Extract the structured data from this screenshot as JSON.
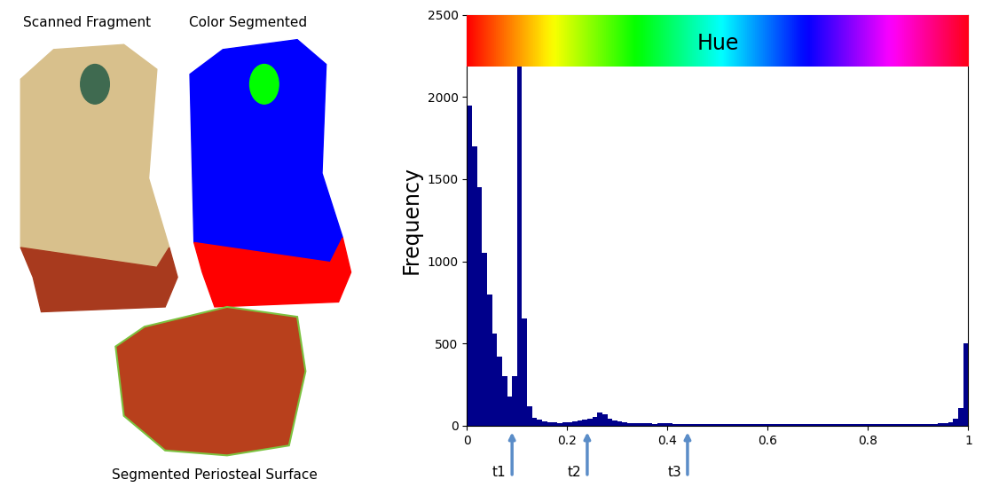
{
  "image_labels": [
    "Scanned Fragment",
    "Color Segmented",
    "Segmented Periosteal Surface"
  ],
  "chart_data": {
    "type": "histogram",
    "ylabel": "Frequency",
    "hue_scale_label": "Hue",
    "bins": [
      0.0,
      0.01,
      0.02,
      0.03,
      0.04,
      0.05,
      0.06,
      0.07,
      0.08,
      0.09,
      0.1,
      0.11,
      0.12,
      0.13,
      0.14,
      0.15,
      0.16,
      0.17,
      0.18,
      0.19,
      0.2,
      0.21,
      0.22,
      0.23,
      0.24,
      0.25,
      0.26,
      0.27,
      0.28,
      0.29,
      0.3,
      0.31,
      0.32,
      0.33,
      0.34,
      0.35,
      0.36,
      0.37,
      0.38,
      0.39,
      0.4,
      0.41,
      0.42,
      0.43,
      0.44,
      0.45,
      0.46,
      0.47,
      0.48,
      0.49,
      0.5,
      0.51,
      0.52,
      0.53,
      0.54,
      0.55,
      0.56,
      0.57,
      0.58,
      0.59,
      0.6,
      0.61,
      0.62,
      0.63,
      0.64,
      0.65,
      0.66,
      0.67,
      0.68,
      0.69,
      0.7,
      0.71,
      0.72,
      0.73,
      0.74,
      0.75,
      0.76,
      0.77,
      0.78,
      0.79,
      0.8,
      0.81,
      0.82,
      0.83,
      0.84,
      0.85,
      0.86,
      0.87,
      0.88,
      0.89,
      0.9,
      0.91,
      0.92,
      0.93,
      0.94,
      0.95,
      0.96,
      0.97,
      0.98,
      0.99,
      1.0
    ],
    "values": [
      1950,
      1700,
      1450,
      1050,
      800,
      560,
      420,
      300,
      180,
      300,
      2450,
      650,
      120,
      50,
      35,
      25,
      22,
      20,
      18,
      20,
      22,
      25,
      30,
      35,
      45,
      55,
      80,
      70,
      40,
      30,
      25,
      20,
      18,
      15,
      15,
      18,
      15,
      12,
      14,
      15,
      15,
      12,
      12,
      10,
      12,
      10,
      10,
      12,
      10,
      10,
      10,
      9,
      10,
      10,
      9,
      10,
      8,
      9,
      10,
      9,
      9,
      10,
      8,
      9,
      9,
      10,
      8,
      9,
      8,
      9,
      8,
      9,
      8,
      8,
      9,
      8,
      8,
      9,
      8,
      8,
      9,
      8,
      8,
      9,
      8,
      9,
      10,
      9,
      9,
      10,
      10,
      11,
      12,
      12,
      14,
      15,
      20,
      40,
      110,
      500
    ],
    "color": "#00008b",
    "xlim": [
      0,
      1
    ],
    "ylim": [
      0,
      2500
    ],
    "xticks": [
      0,
      0.2,
      0.4,
      0.6,
      0.8,
      1
    ],
    "yticks": [
      0,
      500,
      1000,
      1500,
      2000,
      2500
    ],
    "grid": false,
    "annotations": [
      {
        "text": "t1",
        "x": 0.09
      },
      {
        "text": "t2",
        "x": 0.24
      },
      {
        "text": "t3",
        "x": 0.44
      }
    ]
  }
}
